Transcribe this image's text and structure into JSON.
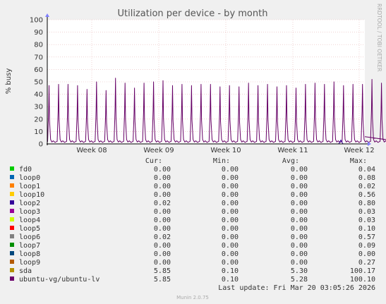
{
  "chart_data": {
    "type": "line",
    "title": "Utilization per device - by month",
    "ylabel": "% busy",
    "xlabel": "",
    "ylim": [
      0,
      100
    ],
    "yticks": [
      "0",
      "10",
      "20",
      "30",
      "40",
      "50",
      "60",
      "70",
      "80",
      "90",
      "100"
    ],
    "xticks": [
      "Week 08",
      "Week 09",
      "Week 10",
      "Week 11",
      "Week 12"
    ],
    "grid": true,
    "side_label": "RRDTOOL / TOBI OETIKER",
    "plot_color": "#660066",
    "spike_peaks": [
      47,
      48,
      48,
      47,
      44,
      50,
      43,
      53,
      49,
      45,
      49,
      50,
      51,
      47,
      48,
      47,
      48,
      48,
      46,
      47,
      46,
      49,
      47,
      48,
      46,
      47,
      45,
      48,
      49,
      48,
      50,
      47,
      48,
      48,
      52,
      49,
      50
    ],
    "legend_headers": {
      "cur": "Cur:",
      "min": "Min:",
      "avg": "Avg:",
      "max": "Max:"
    },
    "series": [
      {
        "name": "fd0",
        "color": "#00cc00",
        "cur": "0.00",
        "min": "0.00",
        "avg": "0.00",
        "max": "0.04"
      },
      {
        "name": "loop0",
        "color": "#0066b3",
        "cur": "0.00",
        "min": "0.00",
        "avg": "0.00",
        "max": "0.08"
      },
      {
        "name": "loop1",
        "color": "#ff8000",
        "cur": "0.00",
        "min": "0.00",
        "avg": "0.00",
        "max": "0.02"
      },
      {
        "name": "loop10",
        "color": "#ffcc00",
        "cur": "0.00",
        "min": "0.00",
        "avg": "0.00",
        "max": "0.56"
      },
      {
        "name": "loop2",
        "color": "#330099",
        "cur": "0.02",
        "min": "0.00",
        "avg": "0.00",
        "max": "0.80"
      },
      {
        "name": "loop3",
        "color": "#990099",
        "cur": "0.00",
        "min": "0.00",
        "avg": "0.00",
        "max": "0.03"
      },
      {
        "name": "loop4",
        "color": "#ccff00",
        "cur": "0.00",
        "min": "0.00",
        "avg": "0.00",
        "max": "0.03"
      },
      {
        "name": "loop5",
        "color": "#ff0000",
        "cur": "0.00",
        "min": "0.00",
        "avg": "0.00",
        "max": "0.10"
      },
      {
        "name": "loop6",
        "color": "#808080",
        "cur": "0.02",
        "min": "0.00",
        "avg": "0.00",
        "max": "0.57"
      },
      {
        "name": "loop7",
        "color": "#008f00",
        "cur": "0.00",
        "min": "0.00",
        "avg": "0.00",
        "max": "0.09"
      },
      {
        "name": "loop8",
        "color": "#00487d",
        "cur": "0.00",
        "min": "0.00",
        "avg": "0.00",
        "max": "0.00"
      },
      {
        "name": "loop9",
        "color": "#b35a00",
        "cur": "0.00",
        "min": "0.00",
        "avg": "0.00",
        "max": "0.27"
      },
      {
        "name": "sda",
        "color": "#b38f00",
        "cur": "5.85",
        "min": "0.10",
        "avg": "5.30",
        "max": "100.17"
      },
      {
        "name": "ubuntu-vg/ubuntu-lv",
        "color": "#6b006b",
        "cur": "5.85",
        "min": "0.10",
        "avg": "5.28",
        "max": "100.10"
      }
    ],
    "last_update": "Last update: Fri Mar 20 03:05:26 2026",
    "footer": "Munin 2.0.75"
  }
}
